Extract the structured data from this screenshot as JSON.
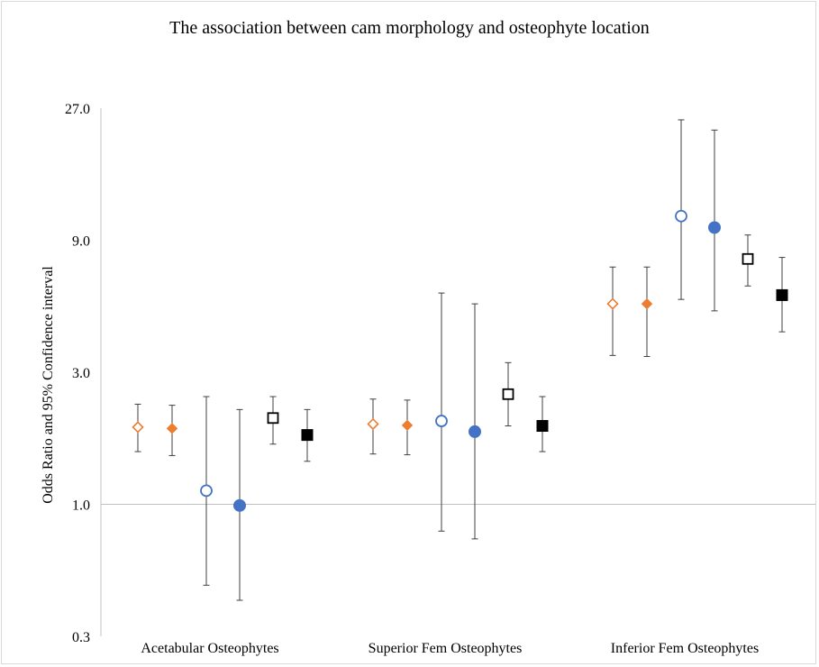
{
  "chart_data": {
    "type": "scatter",
    "title": "The association between cam morphology and osteophyte location",
    "xlabel": "",
    "ylabel": "Odds Ratio and 95% Confidence interval",
    "y_scale": "log3",
    "ylim": [
      0.3,
      27.0
    ],
    "y_ticks": [
      {
        "value": 0.333,
        "label": "0.3"
      },
      {
        "value": 1.0,
        "label": "1.0"
      },
      {
        "value": 3.0,
        "label": "3.0"
      },
      {
        "value": 9.0,
        "label": "9.0"
      },
      {
        "value": 27.0,
        "label": "27.0"
      }
    ],
    "reference_line": 1.0,
    "categories": [
      "Acetabular Osteophytes",
      "Superior Fem Osteophytes",
      "Inferior Fem Osteophytes"
    ],
    "marker_colors": {
      "orange": "#ed7d31",
      "blue": "#4472c4",
      "black": "#000000",
      "errorbar": "#404040",
      "axis": "#c0c0c0"
    },
    "series": [
      {
        "marker": "diamond-open",
        "color": "#ed7d31",
        "or": [
          1.9,
          1.95,
          5.3
        ],
        "lo": [
          1.55,
          1.52,
          3.45
        ],
        "hi": [
          2.3,
          2.4,
          7.2
        ]
      },
      {
        "marker": "diamond-filled",
        "color": "#ed7d31",
        "or": [
          1.88,
          1.93,
          5.3
        ],
        "lo": [
          1.5,
          1.51,
          3.42
        ],
        "hi": [
          2.28,
          2.38,
          7.2
        ]
      },
      {
        "marker": "circle-open",
        "color": "#4472c4",
        "or": [
          1.12,
          2.0,
          11.0
        ],
        "lo": [
          0.51,
          0.8,
          5.5
        ],
        "hi": [
          2.45,
          5.8,
          24.5
        ]
      },
      {
        "marker": "circle-filled",
        "color": "#4472c4",
        "or": [
          0.99,
          1.83,
          10.0
        ],
        "lo": [
          0.45,
          0.75,
          5.0
        ],
        "hi": [
          2.2,
          5.3,
          22.5
        ]
      },
      {
        "marker": "square-open",
        "color": "#000000",
        "or": [
          2.05,
          2.5,
          7.7
        ],
        "lo": [
          1.65,
          1.92,
          6.15
        ],
        "hi": [
          2.45,
          3.25,
          9.4
        ]
      },
      {
        "marker": "square-filled",
        "color": "#000000",
        "or": [
          1.78,
          1.92,
          5.7
        ],
        "lo": [
          1.43,
          1.55,
          4.2
        ],
        "hi": [
          2.2,
          2.45,
          7.8
        ]
      }
    ]
  }
}
